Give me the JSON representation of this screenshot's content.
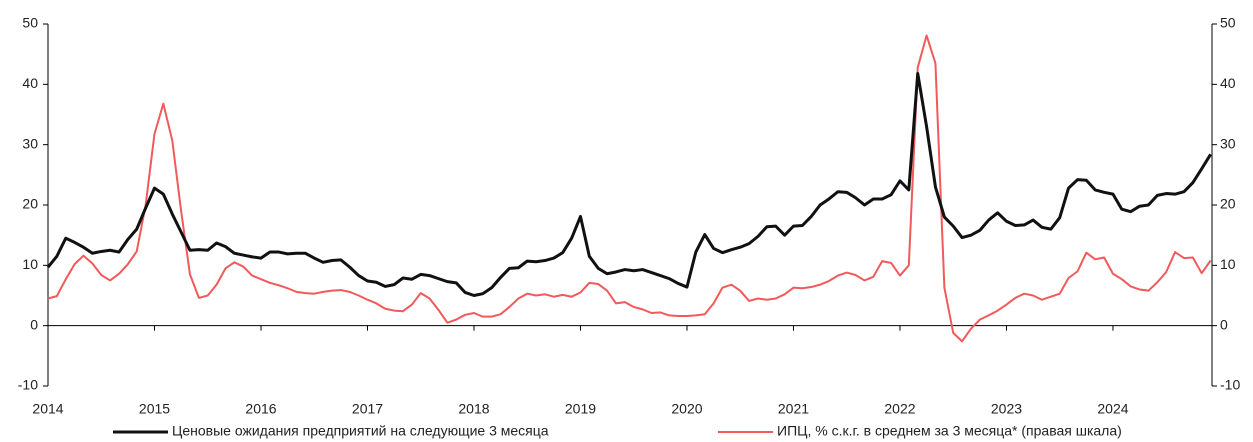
{
  "chart_data": {
    "type": "line",
    "x": [
      2014,
      2014.083,
      2014.167,
      2014.25,
      2014.333,
      2014.417,
      2014.5,
      2014.583,
      2014.667,
      2014.75,
      2014.833,
      2014.917,
      2015,
      2015.083,
      2015.167,
      2015.25,
      2015.333,
      2015.417,
      2015.5,
      2015.583,
      2015.667,
      2015.75,
      2015.833,
      2015.917,
      2016,
      2016.083,
      2016.167,
      2016.25,
      2016.333,
      2016.417,
      2016.5,
      2016.583,
      2016.667,
      2016.75,
      2016.833,
      2016.917,
      2017,
      2017.083,
      2017.167,
      2017.25,
      2017.333,
      2017.417,
      2017.5,
      2017.583,
      2017.667,
      2017.75,
      2017.833,
      2017.917,
      2018,
      2018.083,
      2018.167,
      2018.25,
      2018.333,
      2018.417,
      2018.5,
      2018.583,
      2018.667,
      2018.75,
      2018.833,
      2018.917,
      2019,
      2019.083,
      2019.167,
      2019.25,
      2019.333,
      2019.417,
      2019.5,
      2019.583,
      2019.667,
      2019.75,
      2019.833,
      2019.917,
      2020,
      2020.083,
      2020.167,
      2020.25,
      2020.333,
      2020.417,
      2020.5,
      2020.583,
      2020.667,
      2020.75,
      2020.833,
      2020.917,
      2021,
      2021.083,
      2021.167,
      2021.25,
      2021.333,
      2021.417,
      2021.5,
      2021.583,
      2021.667,
      2021.75,
      2021.833,
      2021.917,
      2022,
      2022.083,
      2022.167,
      2022.25,
      2022.333,
      2022.417,
      2022.5,
      2022.583,
      2022.667,
      2022.75,
      2022.833,
      2022.917,
      2023,
      2023.083,
      2023.167,
      2023.25,
      2023.333,
      2023.417,
      2023.5,
      2023.583,
      2023.667,
      2023.75,
      2023.833,
      2023.917,
      2024,
      2024.083,
      2024.167,
      2024.25,
      2024.333,
      2024.417,
      2024.5,
      2024.583,
      2024.667,
      2024.75,
      2024.833,
      2024.917
    ],
    "series": [
      {
        "name": "Ценовые ожидания предприятий на следующие 3 месяца",
        "color": "#111111",
        "values": [
          9.7,
          11.5,
          14.5,
          13.8,
          13,
          12,
          12.3,
          12.5,
          12.2,
          14.3,
          16,
          19.5,
          22.8,
          21.8,
          18.5,
          15.5,
          12.5,
          12.6,
          12.5,
          13.7,
          13.1,
          12,
          11.7,
          11.4,
          11.2,
          12.2,
          12.2,
          11.9,
          12,
          12,
          11.2,
          10.5,
          10.8,
          10.9,
          9.7,
          8.3,
          7.4,
          7.2,
          6.5,
          6.8,
          7.9,
          7.7,
          8.5,
          8.3,
          7.8,
          7.3,
          7.1,
          5.5,
          5,
          5.3,
          6.3,
          8,
          9.5,
          9.6,
          10.7,
          10.6,
          10.8,
          11.2,
          12.1,
          14.5,
          18.1,
          11.5,
          9.5,
          8.6,
          8.9,
          9.3,
          9.1,
          9.3,
          8.8,
          8.3,
          7.8,
          7,
          6.4,
          12.2,
          15.1,
          12.8,
          12.1,
          12.6,
          13,
          13.6,
          14.8,
          16.4,
          16.5,
          15,
          16.5,
          16.6,
          18.1,
          20,
          21,
          22.2,
          22.1,
          21.2,
          20,
          21,
          21,
          21.7,
          24,
          22.5,
          41.8,
          33,
          23,
          18,
          16.5,
          14.6,
          15,
          15.8,
          17.5,
          18.7,
          17.3,
          16.6,
          16.7,
          17.5,
          16.3,
          16,
          17.9,
          22.8,
          24.2,
          24.1,
          22.5,
          22.1,
          21.8,
          19.3,
          18.9,
          19.8,
          20,
          21.6,
          21.9,
          21.8,
          22.2,
          23.7,
          26,
          28.4
        ]
      },
      {
        "name": "ИПЦ, % с.к.г. в среднем за 3 месяца* (правая шкала)",
        "color": "#f05a5a",
        "axis": "y2",
        "values": [
          4.5,
          4.9,
          7.7,
          10.2,
          11.6,
          10.3,
          8.4,
          7.5,
          8.6,
          10.2,
          12.3,
          20,
          31.8,
          36.8,
          30.7,
          19,
          8.5,
          4.6,
          5,
          6.8,
          9.5,
          10.5,
          9.8,
          8.3,
          7.7,
          7.1,
          6.7,
          6.2,
          5.6,
          5.4,
          5.3,
          5.6,
          5.8,
          5.9,
          5.6,
          5,
          4.3,
          3.7,
          2.8,
          2.5,
          2.4,
          3.5,
          5.4,
          4.5,
          2.6,
          0.5,
          1,
          1.8,
          2.1,
          1.5,
          1.5,
          1.9,
          3.1,
          4.5,
          5.3,
          5,
          5.2,
          4.8,
          5.1,
          4.8,
          5.5,
          7.1,
          6.9,
          5.8,
          3.7,
          3.9,
          3.1,
          2.7,
          2.1,
          2.2,
          1.7,
          1.6,
          1.6,
          1.7,
          1.9,
          3.7,
          6.3,
          6.8,
          5.8,
          4.1,
          4.5,
          4.3,
          4.5,
          5.2,
          6.3,
          6.2,
          6.4,
          6.8,
          7.4,
          8.3,
          8.8,
          8.4,
          7.5,
          8.1,
          10.7,
          10.4,
          8.3,
          10,
          42.8,
          48.1,
          43.5,
          6.3,
          -1.2,
          -2.6,
          -0.5,
          1,
          1.7,
          2.5,
          3.5,
          4.6,
          5.3,
          5,
          4.3,
          4.8,
          5.3,
          7.9,
          9,
          12.1,
          11,
          11.3,
          8.6,
          7.7,
          6.5,
          6,
          5.8,
          7.2,
          8.9,
          12.2,
          11.2,
          11.3,
          8.7,
          10.8
        ]
      }
    ],
    "xlim": [
      2014,
      2024.93
    ],
    "xticks": [
      2014,
      2015,
      2016,
      2017,
      2018,
      2019,
      2020,
      2021,
      2022,
      2023,
      2024
    ],
    "ylim": [
      -10,
      50
    ],
    "yticks": [
      -10,
      0,
      10,
      20,
      30,
      40,
      50
    ],
    "y2lim": [
      -10,
      50
    ],
    "y2ticks": [
      -10,
      0,
      10,
      20,
      30,
      40,
      50
    ],
    "legend": "bottom"
  }
}
